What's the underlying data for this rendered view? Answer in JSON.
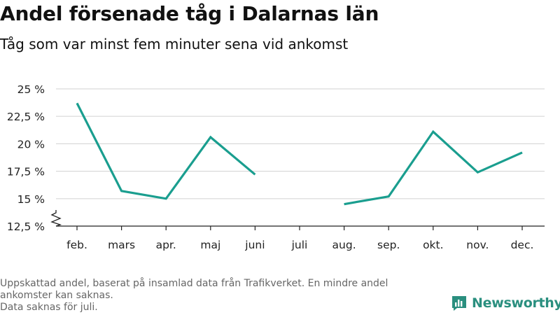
{
  "title": "Andel försenade tåg i Dalarnas län",
  "subtitle": "Tåg som var minst fem minuter sena vid ankomst",
  "footnote": {
    "line1": "Uppskattad andel, baserat på insamlad data från Trafikverket. En mindre andel ankomster kan saknas.",
    "line2": "Data saknas för juli."
  },
  "brand": {
    "name": "Newsworthy",
    "icon": "bar-chart-logo-icon",
    "color": "#2a8f7f"
  },
  "colors": {
    "line": "#1a9e8f",
    "grid": "#d9d9d9",
    "axis": "#222222"
  },
  "chart_data": {
    "type": "line",
    "categories": [
      "feb.",
      "mars",
      "apr.",
      "maj",
      "juni",
      "juli",
      "aug.",
      "sep.",
      "okt.",
      "nov.",
      "dec."
    ],
    "series": [
      {
        "values": [
          23.7,
          15.7,
          15.0,
          20.6,
          17.2,
          null,
          14.5,
          15.2,
          21.1,
          17.4,
          19.2
        ]
      }
    ],
    "yticks": [
      12.5,
      15,
      17.5,
      20,
      22.5,
      25
    ],
    "ytick_labels": [
      "12,5 %",
      "15 %",
      "17,5 %",
      "20 %",
      "22,5 %",
      "25 %"
    ],
    "ylim": [
      12.5,
      25
    ],
    "y_axis_break": true,
    "grid": true,
    "xlabel": "",
    "ylabel": ""
  }
}
